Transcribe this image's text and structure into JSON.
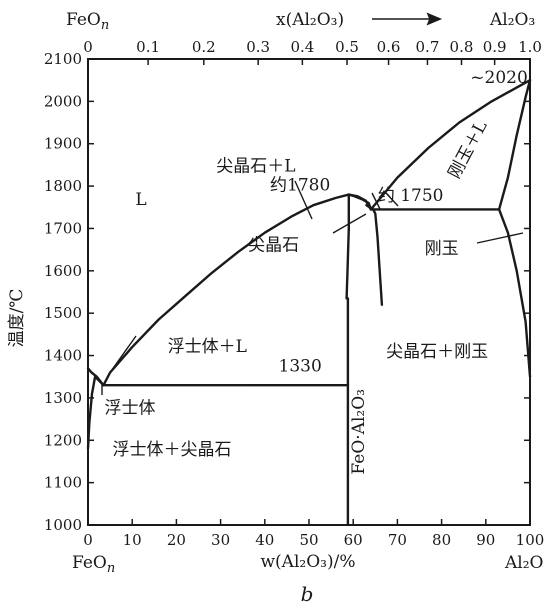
{
  "chart_data": {
    "type": "line",
    "title": "",
    "panel_label": "b",
    "xlabel": "w(Al₂O₃)/%",
    "ylabel": "温度/℃",
    "x_left_end_label": "FeO",
    "x_left_end_sub": "n",
    "x_right_end_label": "Al₂O",
    "xlim": [
      0,
      100
    ],
    "ylim": [
      1000,
      2100
    ],
    "x_ticks": [
      0,
      10,
      20,
      30,
      40,
      50,
      60,
      70,
      80,
      90,
      100
    ],
    "y_ticks": [
      1000,
      1100,
      1200,
      1300,
      1400,
      1500,
      1600,
      1700,
      1800,
      1900,
      2000,
      2100
    ],
    "top_axis": {
      "label": "x(Al₂O₃)",
      "left_end_label": "FeO",
      "left_end_sub": "n",
      "right_end_label": "Al₂O₃",
      "ticks": [
        {
          "label": "0",
          "w": 0
        },
        {
          "label": "0.1",
          "w": 13.6
        },
        {
          "label": "0.2",
          "w": 26.2
        },
        {
          "label": "0.3",
          "w": 38.5
        },
        {
          "label": "0.4",
          "w": 48.5
        },
        {
          "label": "0.5",
          "w": 58.6
        },
        {
          "label": "0.6",
          "w": 68.0
        },
        {
          "label": "0.7",
          "w": 76.8
        },
        {
          "label": "0.8",
          "w": 84.5
        },
        {
          "label": "0.9",
          "w": 92.0
        },
        {
          "label": "1.0",
          "w": 100
        }
      ]
    },
    "series": [
      {
        "points": [
          [
            0,
            1370
          ],
          [
            0.8,
            1360
          ],
          [
            2,
            1350
          ],
          [
            3.5,
            1330
          ]
        ]
      },
      {
        "points": [
          [
            0,
            1180
          ],
          [
            0.3,
            1240
          ],
          [
            0.9,
            1310
          ],
          [
            1.6,
            1350
          ],
          [
            3.5,
            1330
          ]
        ]
      },
      {
        "points": [
          [
            3.5,
            1330
          ],
          [
            5,
            1360
          ],
          [
            10,
            1420
          ],
          [
            16,
            1485
          ],
          [
            22,
            1540
          ],
          [
            28,
            1595
          ],
          [
            34,
            1645
          ],
          [
            40,
            1690
          ],
          [
            46,
            1728
          ],
          [
            51,
            1755
          ],
          [
            56,
            1772
          ],
          [
            59,
            1780
          ]
        ]
      },
      {
        "points": [
          [
            59,
            1780
          ],
          [
            61,
            1776
          ],
          [
            62.8,
            1766
          ],
          [
            64,
            1745
          ]
        ]
      },
      {
        "points": [
          [
            59,
            1780
          ],
          [
            60,
            1777
          ],
          [
            62,
            1769
          ],
          [
            63.5,
            1760
          ],
          [
            64,
            1745
          ]
        ]
      },
      {
        "points": [
          [
            58.5,
            1535
          ],
          [
            58.7,
            1600
          ],
          [
            59,
            1700
          ],
          [
            59,
            1780
          ]
        ]
      },
      {
        "points": [
          [
            3.5,
            1330
          ],
          [
            58.8,
            1330
          ]
        ]
      },
      {
        "points": [
          [
            58.8,
            1000
          ],
          [
            58.8,
            1535
          ]
        ]
      },
      {
        "points": [
          [
            64,
            1745
          ],
          [
            93,
            1745
          ]
        ]
      },
      {
        "points": [
          [
            63,
            1755
          ],
          [
            64,
            1748
          ],
          [
            64.5,
            1745
          ],
          [
            65,
            1735
          ],
          [
            65.5,
            1680
          ],
          [
            66,
            1600
          ],
          [
            66.5,
            1520
          ]
        ]
      },
      {
        "points": [
          [
            64,
            1745
          ],
          [
            70,
            1820
          ],
          [
            77,
            1890
          ],
          [
            84,
            1950
          ],
          [
            91,
            1998
          ],
          [
            100,
            2050
          ]
        ]
      },
      {
        "points": [
          [
            93,
            1745
          ],
          [
            95,
            1820
          ],
          [
            97,
            1920
          ],
          [
            99,
            2010
          ],
          [
            100,
            2050
          ]
        ]
      },
      {
        "points": [
          [
            93,
            1745
          ],
          [
            95,
            1690
          ],
          [
            97,
            1600
          ],
          [
            99,
            1480
          ],
          [
            100,
            1350
          ]
        ]
      }
    ],
    "annotations": [
      {
        "text": "L",
        "x": 12,
        "y": 1755
      },
      {
        "text": "尖晶石＋L",
        "x": 38,
        "y": 1835
      },
      {
        "text": "约1780",
        "x": 48,
        "y": 1790
      },
      {
        "text": "约 1750",
        "x": 73,
        "y": 1765
      },
      {
        "text": "~2020",
        "x": 93,
        "y": 2043
      },
      {
        "text": "刚玉＋L",
        "x": 87,
        "y": 1880,
        "rotate": -62
      },
      {
        "text": "尖晶石",
        "x": 42,
        "y": 1648
      },
      {
        "text": "刚玉",
        "x": 80,
        "y": 1640
      },
      {
        "text": "浮士体＋L",
        "x": 27,
        "y": 1408
      },
      {
        "text": "1330",
        "x": 48,
        "y": 1362
      },
      {
        "text": "尖晶石＋刚玉",
        "x": 79,
        "y": 1397
      },
      {
        "text": "浮士体",
        "x": 9.5,
        "y": 1263
      },
      {
        "text": "浮士体＋尖晶石",
        "x": 19,
        "y": 1165
      },
      {
        "text": "FeO·Al₂O₃",
        "x": 62.5,
        "y": 1220,
        "rotate": -90
      }
    ],
    "arrow_direction": "right"
  }
}
